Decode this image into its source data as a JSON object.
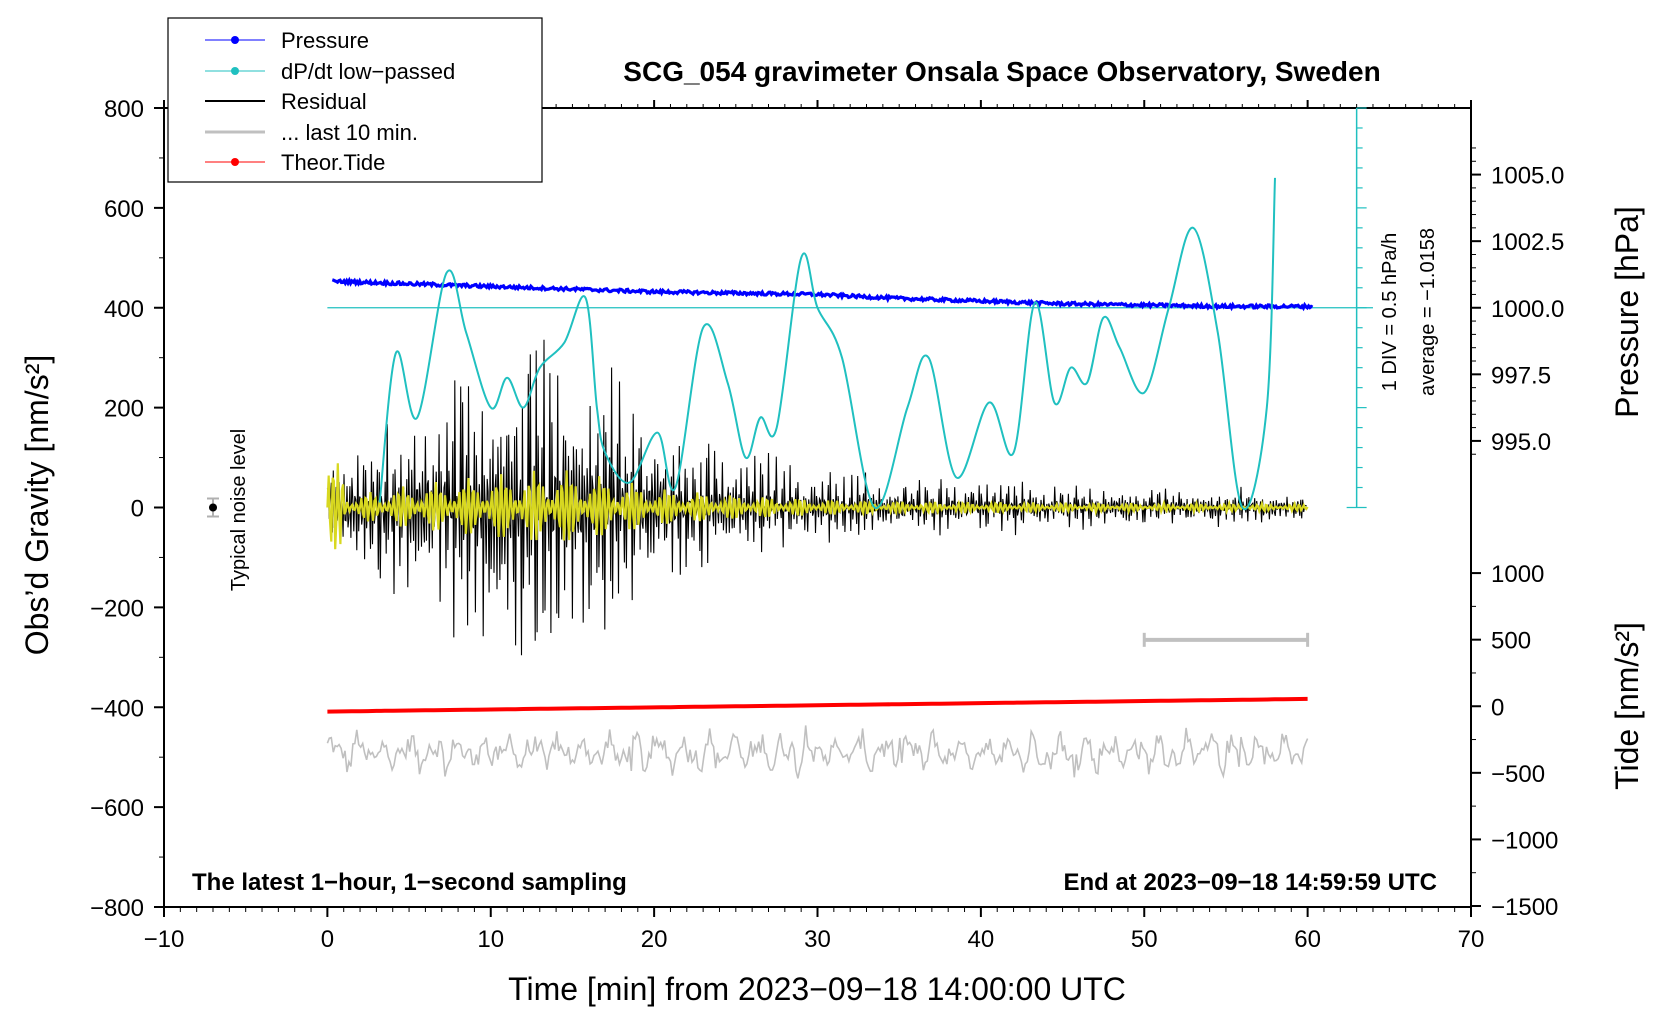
{
  "chart_data": {
    "type": "line",
    "title": "SCG_054 gravimeter Onsala Space Observatory, Sweden",
    "xlabel": "Time [min] from 2023−09−18 14:00:00 UTC",
    "ylabel_left": "Obs’d Gravity [nm/s²]",
    "ylabel_right_pressure": "Pressure [hPa]",
    "ylabel_right_tide": "Tide [nm/s²]",
    "xlim": [
      -10,
      70
    ],
    "ylim": [
      -800,
      800
    ],
    "x_ticks": [
      "−10",
      "0",
      "10",
      "20",
      "30",
      "40",
      "50",
      "60",
      "70"
    ],
    "x_tick_values": [
      -10,
      0,
      10,
      20,
      30,
      40,
      50,
      60,
      70
    ],
    "y_ticks": [
      "800",
      "600",
      "400",
      "200",
      "0",
      "−200",
      "−400",
      "−600",
      "−800"
    ],
    "y_tick_values": [
      800,
      600,
      400,
      200,
      0,
      -200,
      -400,
      -600,
      -800
    ],
    "pressure_ticks": [
      "1005.0",
      "1002.5",
      "1000.0",
      "997.5",
      "995.0"
    ],
    "pressure_tick_values": [
      1005.0,
      1002.5,
      1000.0,
      997.5,
      995.0
    ],
    "tide_ticks": [
      "1000",
      "500",
      "0",
      "−500",
      "−1000",
      "−1500"
    ],
    "tide_tick_values": [
      1000,
      500,
      0,
      -500,
      -1000,
      -1500
    ],
    "legend": [
      {
        "label": "Pressure",
        "color": "#0000ff",
        "marker": true
      },
      {
        "label": "dP/dt low−passed",
        "color": "#20c0c0",
        "marker": true
      },
      {
        "label": "Residual",
        "color": "#000000",
        "marker": false
      },
      {
        "label": "... last 10 min.",
        "color": "#c0c0c0",
        "marker": false
      },
      {
        "label": "Theor.Tide",
        "color": "#ff0000",
        "marker": true
      }
    ],
    "colors": {
      "pressure": "#0000ff",
      "dpdt": "#20c0c0",
      "residual": "#000000",
      "last10": "#c0c0c0",
      "tide": "#ff0000",
      "yellow": "#d8d820"
    },
    "series": [
      {
        "name": "Pressure",
        "unit": "hPa",
        "x": [
          0,
          5,
          10,
          15,
          20,
          25,
          30,
          35,
          40,
          45,
          50,
          55,
          60
        ],
        "values": [
          1001.0,
          1000.9,
          1000.8,
          1000.7,
          1000.6,
          1000.55,
          1000.5,
          1000.35,
          1000.25,
          1000.15,
          1000.1,
          1000.05,
          1000.05
        ]
      },
      {
        "name": "dP/dt low−passed",
        "unit": "gravity-scale",
        "x": [
          3.2,
          4.2,
          5.5,
          7.3,
          8.5,
          10.0,
          11.0,
          12.0,
          13.0,
          14.5,
          15.8,
          16.5,
          17.0,
          18.5,
          20.2,
          21.3,
          23.0,
          24.5,
          25.6,
          26.5,
          27.5,
          29.0,
          30.0,
          31.5,
          33.5,
          35.5,
          36.8,
          38.5,
          40.5,
          42.0,
          43.3,
          44.5,
          45.5,
          46.5,
          47.5,
          48.5,
          50.0,
          51.5,
          53.0,
          54.5,
          56.0,
          57.5,
          58.0
        ],
        "values": [
          10,
          310,
          180,
          470,
          350,
          200,
          260,
          200,
          280,
          330,
          420,
          200,
          110,
          50,
          150,
          40,
          360,
          250,
          100,
          180,
          160,
          500,
          400,
          300,
          0,
          200,
          300,
          60,
          210,
          110,
          410,
          210,
          280,
          250,
          380,
          320,
          230,
          400,
          560,
          350,
          0,
          200,
          660
        ]
      },
      {
        "name": "Residual",
        "unit": "nm/s²",
        "x": [
          0,
          2,
          5,
          10,
          14,
          18,
          20,
          25,
          30,
          35,
          40,
          45,
          50,
          55,
          60
        ],
        "envelope": [
          120,
          100,
          160,
          230,
          280,
          200,
          140,
          90,
          60,
          45,
          40,
          35,
          30,
          30,
          25
        ]
      },
      {
        "name": "... last 10 min.",
        "unit": "nm/s²",
        "x_range": [
          0,
          60
        ],
        "center": -490,
        "range_bar": [
          50,
          60
        ],
        "range_bar_level": -265
      },
      {
        "name": "Theor.Tide",
        "unit": "nm/s²",
        "x": [
          0,
          60
        ],
        "values": [
          -40,
          55
        ]
      }
    ],
    "annotations": {
      "noise_label": "Typical noise level",
      "noise_x": -7,
      "noise_range": [
        -18,
        18
      ],
      "scale_div": "1 DIV = 0.5 hPa/h",
      "average": "average = −1.0158",
      "bottom_left": "The latest 1−hour, 1−second sampling",
      "bottom_right": "End at 2023−09−18 14:59:59 UTC"
    }
  }
}
